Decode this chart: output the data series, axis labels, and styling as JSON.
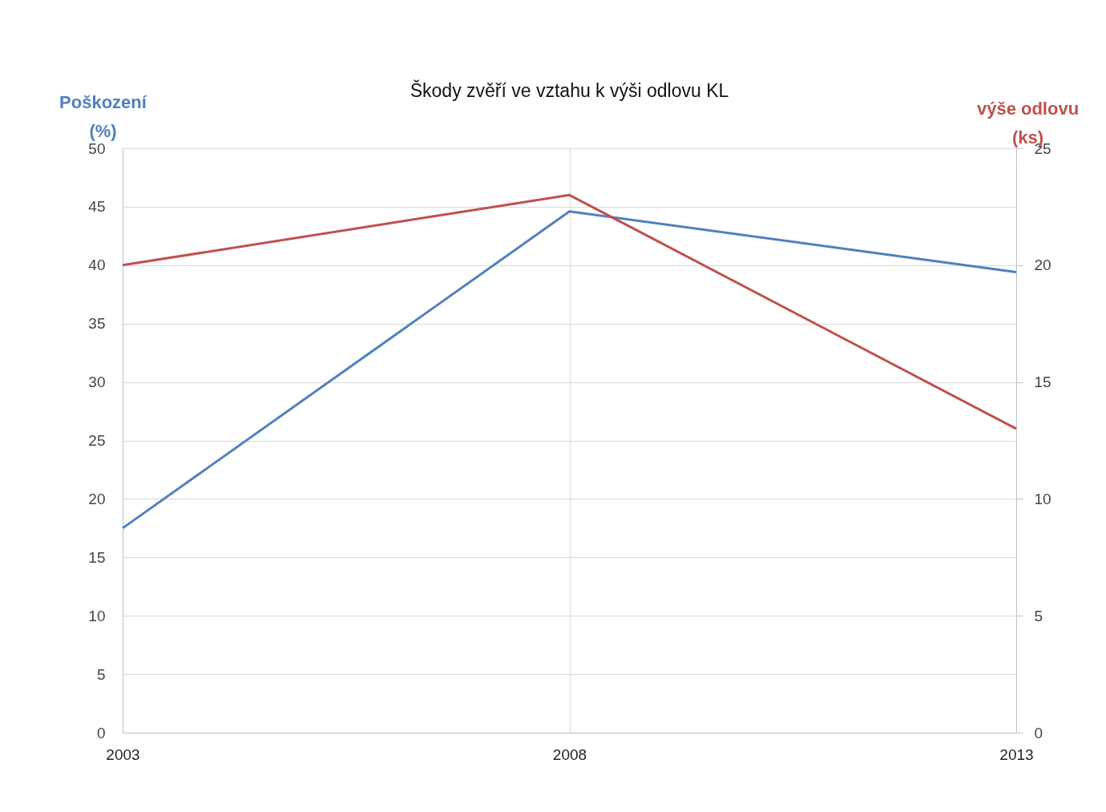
{
  "chart_data": {
    "type": "line",
    "title": "Škody zvěří ve vztahu k výši odlovu KL",
    "ylabel": "Poškození (%)",
    "y2label": "výše odlovu (ks)",
    "x": [
      2003,
      2008,
      2013
    ],
    "xlim": [
      2003,
      2013
    ],
    "xticks": [
      2003,
      2008,
      2013
    ],
    "ylim": [
      0,
      50
    ],
    "yticks": [
      0,
      5,
      10,
      15,
      20,
      25,
      30,
      35,
      40,
      45,
      50
    ],
    "y2lim": [
      0,
      25
    ],
    "y2ticks": [
      0,
      5,
      10,
      15,
      20,
      25
    ],
    "grid": true,
    "line_style": "solid",
    "marker": "none",
    "series": [
      {
        "color": "#4f81bd",
        "values": [
          17.5,
          44.6,
          39.4
        ]
      },
      {
        "color": "#c0504d",
        "axis": "y2",
        "values": [
          20,
          23,
          13
        ]
      }
    ]
  }
}
